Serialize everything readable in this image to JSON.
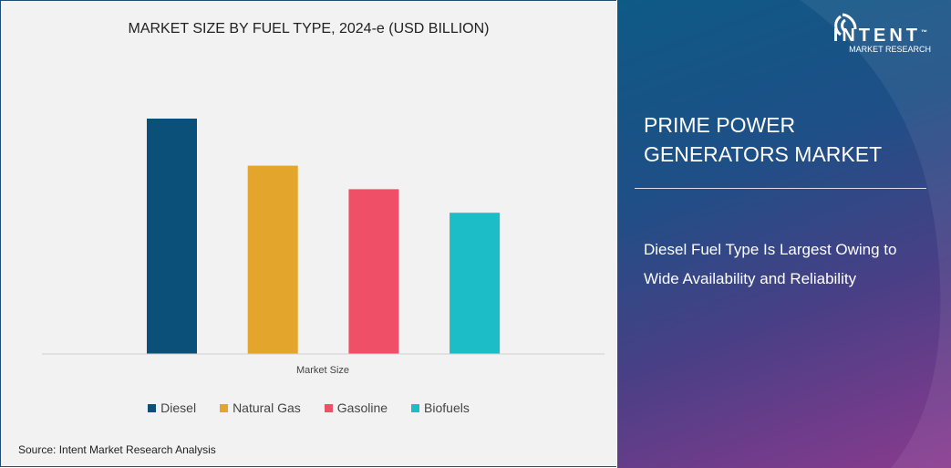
{
  "chart_data": {
    "type": "bar",
    "title": "MARKET SIZE BY FUEL TYPE, 2024-e (USD BILLION)",
    "xlabel": "Market Size",
    "ylabel": "",
    "categories": [
      "Market Size"
    ],
    "series": [
      {
        "name": "Diesel",
        "values": [
          100
        ],
        "color": "#0b5079"
      },
      {
        "name": "Natural Gas",
        "values": [
          80
        ],
        "color": "#e3a52c"
      },
      {
        "name": "Gasoline",
        "values": [
          70
        ],
        "color": "#f05067"
      },
      {
        "name": "Biofuels",
        "values": [
          60
        ],
        "color": "#1cbdc6"
      }
    ],
    "ylim": [
      0,
      100
    ],
    "value_note": "relative values (no axis shown)",
    "grid": false,
    "legend": "bottom"
  },
  "source": "Source:  Intent Market Research Analysis",
  "panel": {
    "logo_brand": "INTENT",
    "logo_tm": "™",
    "logo_sub": "MARKET RESEARCH",
    "title": "PRIME POWER GENERATORS MARKET",
    "text": "Diesel Fuel Type Is Largest Owing to Wide Availability and Reliability"
  }
}
